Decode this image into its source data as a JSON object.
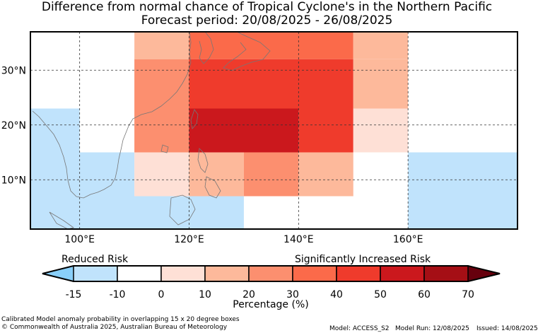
{
  "title_line1": "Difference from normal chance of Tropical Cyclone's in the Northern Pacific",
  "title_line2": "Forecast period: 20/08/2025 - 26/08/2025",
  "map": {
    "lon_range": [
      91,
      180
    ],
    "lat_range": [
      1,
      37
    ],
    "lon_ticks": [
      {
        "value": 100,
        "label": "100°E"
      },
      {
        "value": 120,
        "label": "120°E"
      },
      {
        "value": 140,
        "label": "140°E"
      },
      {
        "value": 160,
        "label": "160°E"
      }
    ],
    "lat_ticks": [
      {
        "value": 30,
        "label": "30°N"
      },
      {
        "value": 20,
        "label": "20°N"
      },
      {
        "value": 10,
        "label": "10°N"
      }
    ],
    "cells": [
      {
        "lon": [
          110,
          120
        ],
        "lat": [
          32,
          37
        ],
        "pct": 15
      },
      {
        "lon": [
          120,
          150
        ],
        "lat": [
          32,
          37
        ],
        "pct": 35
      },
      {
        "lon": [
          150,
          160
        ],
        "lat": [
          32,
          37
        ],
        "pct": 15
      },
      {
        "lon": [
          110,
          120
        ],
        "lat": [
          23,
          32
        ],
        "pct": 25
      },
      {
        "lon": [
          120,
          150
        ],
        "lat": [
          23,
          32
        ],
        "pct": 45
      },
      {
        "lon": [
          150,
          160
        ],
        "lat": [
          23,
          32
        ],
        "pct": 15
      },
      {
        "lon": [
          91,
          100
        ],
        "lat": [
          15,
          23
        ],
        "pct": -12
      },
      {
        "lon": [
          110,
          120
        ],
        "lat": [
          15,
          23
        ],
        "pct": 25
      },
      {
        "lon": [
          120,
          140
        ],
        "lat": [
          15,
          23
        ],
        "pct": 55
      },
      {
        "lon": [
          140,
          150
        ],
        "lat": [
          15,
          23
        ],
        "pct": 45
      },
      {
        "lon": [
          150,
          160
        ],
        "lat": [
          15,
          23
        ],
        "pct": 5
      },
      {
        "lon": [
          160,
          180
        ],
        "lat": [
          15,
          23
        ],
        "pct": -8
      },
      {
        "lon": [
          91,
          100
        ],
        "lat": [
          7,
          15
        ],
        "pct": -12
      },
      {
        "lon": [
          100,
          110
        ],
        "lat": [
          7,
          15
        ],
        "pct": -12
      },
      {
        "lon": [
          110,
          120
        ],
        "lat": [
          7,
          15
        ],
        "pct": 5
      },
      {
        "lon": [
          120,
          130
        ],
        "lat": [
          7,
          15
        ],
        "pct": 15
      },
      {
        "lon": [
          130,
          140
        ],
        "lat": [
          7,
          15
        ],
        "pct": 25
      },
      {
        "lon": [
          140,
          150
        ],
        "lat": [
          7,
          15
        ],
        "pct": 15
      },
      {
        "lon": [
          160,
          180
        ],
        "lat": [
          7,
          15
        ],
        "pct": -12
      },
      {
        "lon": [
          91,
          130
        ],
        "lat": [
          1,
          7
        ],
        "pct": -12
      },
      {
        "lon": [
          150,
          160
        ],
        "lat": [
          1,
          7
        ],
        "pct": -8
      },
      {
        "lon": [
          160,
          180
        ],
        "lat": [
          1,
          7
        ],
        "pct": -12
      }
    ]
  },
  "colorbar": {
    "left_label": "Reduced Risk",
    "right_label": "Significantly Increased Risk",
    "ticks": [
      "-15",
      "-10",
      "0",
      "10",
      "20",
      "30",
      "40",
      "50",
      "60",
      "70"
    ],
    "bounds": [
      -15,
      -10,
      0,
      10,
      20,
      30,
      40,
      50,
      60,
      70
    ],
    "colors": [
      "#c0e3fc",
      "#ffffff",
      "#fee0d6",
      "#fdb99b",
      "#fc8f6f",
      "#fb6a4a",
      "#ef3b2c",
      "#cb181d",
      "#a50f15"
    ],
    "under_color": "#89cff9",
    "over_color": "#67000d",
    "xlabel": "Percentage (%)"
  },
  "footer": {
    "line1": "Calibrated Model anomaly probability in overlapping 15 x 20 degree boxes",
    "line2": "© Commonwealth of Australia 2025, Australian Bureau of Meteorology",
    "model": "Model: ACCESS_S2",
    "model_run": "Model Run: 12/08/2025",
    "issued": "Issued: 14/08/2025"
  }
}
